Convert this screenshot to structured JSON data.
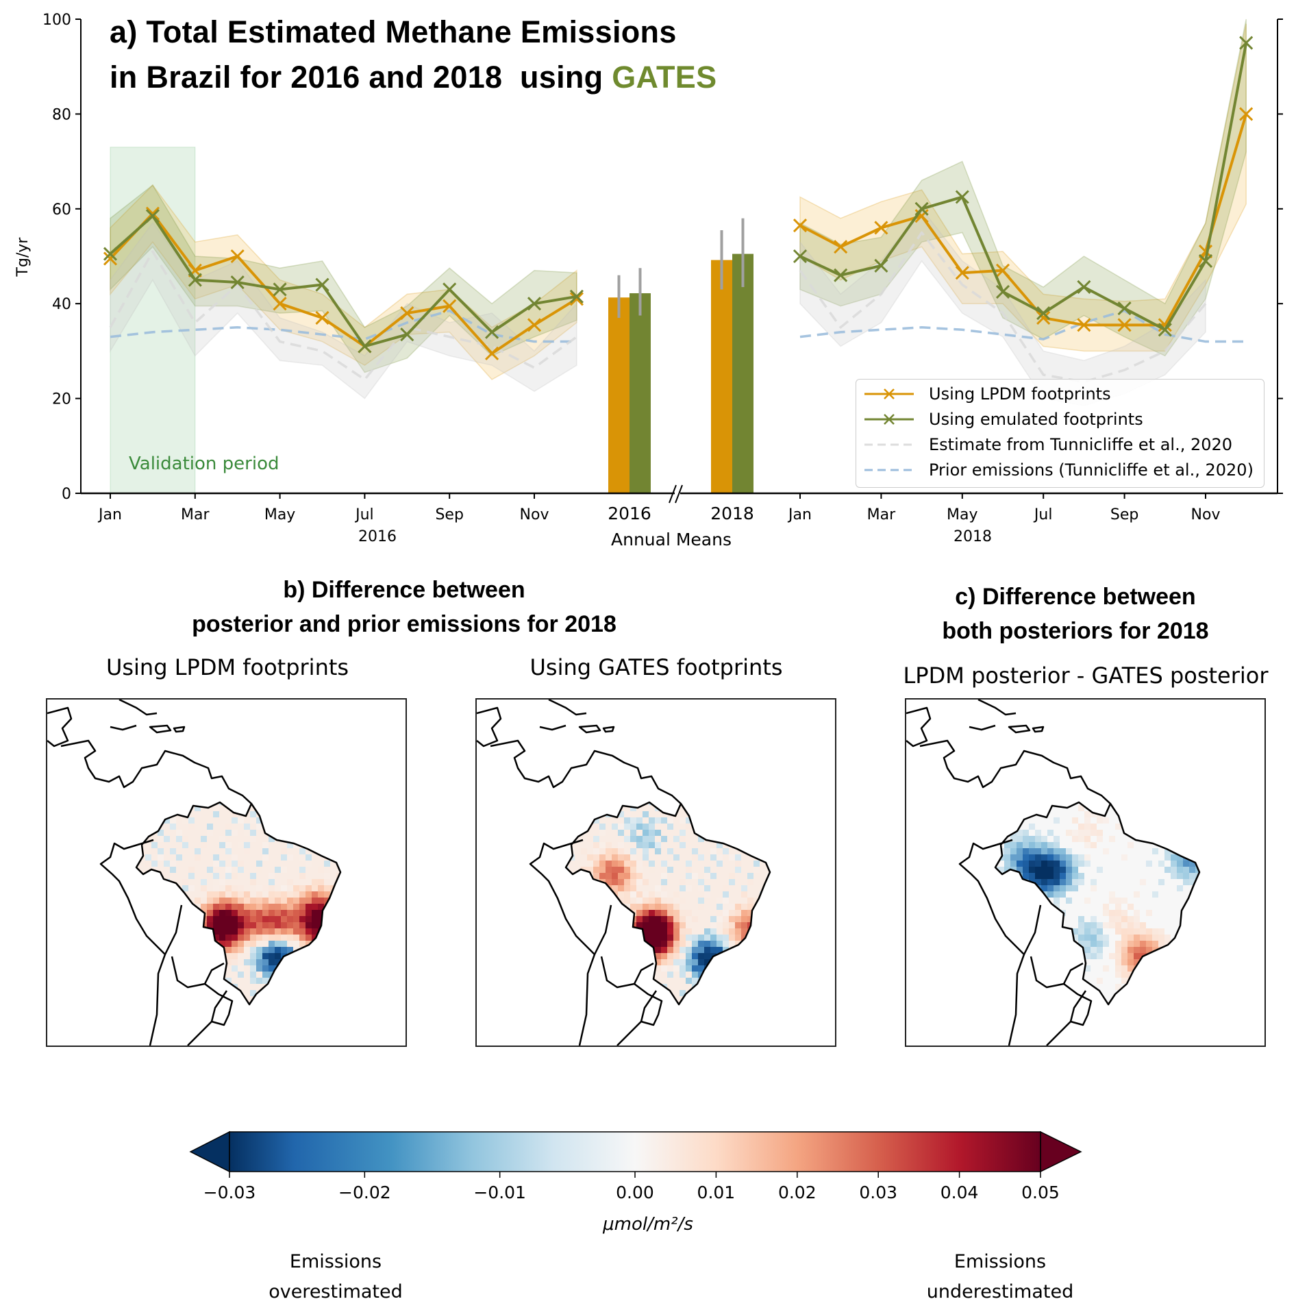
{
  "panel_a": {
    "title_line1": "a) Total Estimated Methane Emissions",
    "title_line2_prefix": "in Brazil for 2016 and 2018  using ",
    "title_line2_highlight": "GATES",
    "validation_label": "Validation period",
    "legend": [
      {
        "label": "Using LPDM footprints",
        "color": "#d99406",
        "style": "solid-x"
      },
      {
        "label": "Using emulated footprints",
        "color": "#728532",
        "style": "solid-x"
      },
      {
        "label": "Estimate from Tunnicliffe et al., 2020",
        "color": "#d9d9d9",
        "style": "dashed"
      },
      {
        "label": "Prior emissions (Tunnicliffe et al., 2020)",
        "color": "#9bbcdc",
        "style": "dashed"
      }
    ]
  },
  "panel_b": {
    "title_line1": "b) Difference between",
    "title_line2": "posterior and prior emissions  for 2018",
    "map1_subtitle": "Using LPDM footprints",
    "map2_subtitle": "Using GATES footprints"
  },
  "panel_c": {
    "title_line1": "c) Difference between",
    "title_line2": "both posteriors for 2018",
    "map_subtitle": "LPDM posterior - GATES posterior"
  },
  "colorbar": {
    "ticks": [
      "−0.03",
      "−0.02",
      "−0.01",
      "0.00",
      "0.01",
      "0.02",
      "0.03",
      "0.04",
      "0.05"
    ],
    "tick_values": [
      -0.03,
      -0.02,
      -0.01,
      0.0,
      0.01,
      0.02,
      0.03,
      0.04,
      0.05
    ],
    "vmin": -0.03,
    "vcenter": 0.0,
    "vmax": 0.05,
    "unit": "μmol/m²/s",
    "left_label_1": "Emissions",
    "left_label_2": "overestimated",
    "right_label_1": "Emissions",
    "right_label_2": "underestimated",
    "cmap": "RdBu_r"
  },
  "chart_data": {
    "type": "line",
    "title": "a) Total Estimated Methane Emissions in Brazil for 2016 and 2018 using GATES",
    "ylabel": "Tg/yr",
    "ylim": [
      0,
      100
    ],
    "yticks": [
      0,
      20,
      40,
      60,
      80,
      100
    ],
    "grid": false,
    "legend_position": "bottom-right",
    "x_2016": [
      "Jan",
      "Feb",
      "Mar",
      "Apr",
      "May",
      "Jun",
      "Jul",
      "Aug",
      "Sep",
      "Oct",
      "Nov",
      "Dec"
    ],
    "x_2018": [
      "Jan",
      "Feb",
      "Mar",
      "Apr",
      "May",
      "Jun",
      "Jul",
      "Aug",
      "Sep",
      "Oct",
      "Nov",
      "Dec"
    ],
    "xtick_labels_2016": [
      "Jan",
      "Mar",
      "May",
      "Jul",
      "Sep",
      "Nov"
    ],
    "xtick_labels_2018": [
      "Jan",
      "Mar",
      "May",
      "Jul",
      "Sep",
      "Nov"
    ],
    "xlabel_2016": "2016",
    "xlabel_2018": "2018",
    "annual_means_label": "Annual Means",
    "annual_categories": [
      "2016",
      "2018"
    ],
    "axis_break": "//",
    "validation_period": {
      "from": "Jan 2016",
      "to": "Mar 2016",
      "upper": 73
    },
    "series": [
      {
        "name": "Using LPDM footprints",
        "color": "#d99406",
        "marker": "x",
        "values_2016": [
          49.5,
          59,
          47,
          50,
          40,
          37,
          31,
          38,
          39.5,
          29.5,
          35.5,
          41
        ],
        "lower_2016": [
          42,
          53,
          41,
          44,
          34.5,
          32,
          27,
          33.5,
          34,
          24,
          29,
          36
        ],
        "upper_2016": [
          56,
          65,
          53,
          54.5,
          45,
          42,
          35,
          42,
          43,
          35,
          40,
          47
        ],
        "values_2018": [
          56.5,
          52,
          56,
          58.5,
          46.5,
          47,
          37,
          35.5,
          35.5,
          35.5,
          51,
          80
        ],
        "lower_2018": [
          50,
          45,
          49,
          52,
          40,
          40,
          31,
          30,
          30,
          30,
          44,
          61
        ],
        "upper_2018": [
          62.5,
          58,
          61.5,
          64,
          50.5,
          51,
          42,
          41,
          40.5,
          41,
          57,
          99
        ],
        "annual_mean": [
          41.3,
          49.2
        ],
        "annual_err_low": [
          37,
          43
        ],
        "annual_err_high": [
          46,
          55.5
        ]
      },
      {
        "name": "Using emulated footprints",
        "color": "#728532",
        "marker": "x",
        "values_2016": [
          50.5,
          58.5,
          45,
          44.5,
          43,
          44,
          31,
          33.5,
          43,
          34,
          40,
          41.5
        ],
        "lower_2016": [
          43,
          52,
          39.5,
          39.5,
          38,
          38.5,
          25.5,
          28.5,
          37.5,
          29,
          33,
          36.5
        ],
        "upper_2016": [
          58,
          65,
          50,
          49.5,
          47.5,
          49,
          35,
          39.5,
          47.5,
          40,
          47,
          46.5
        ],
        "values_2018": [
          50,
          46,
          48,
          60,
          62.5,
          42.5,
          38,
          43.5,
          39,
          34.5,
          49,
          95
        ],
        "lower_2018": [
          43,
          39.5,
          42,
          53,
          55,
          37,
          32.5,
          37.5,
          33,
          29,
          41,
          72
        ],
        "upper_2018": [
          57,
          52.5,
          54,
          66,
          70,
          48,
          43.5,
          50,
          45,
          40,
          57,
          100
        ]
      },
      {
        "name": "Estimate from Tunnicliffe et al., 2020",
        "color": "#d9d9d9",
        "dashed": true,
        "values_2016": [
          35,
          51,
          36,
          44,
          32,
          30,
          24,
          35,
          33,
          31,
          26.5,
          33
        ],
        "lower_2016": [
          30,
          45,
          29,
          38,
          28,
          27,
          20,
          32,
          29,
          27,
          21.5,
          27
        ],
        "upper_2016": [
          45,
          57,
          45,
          49,
          37,
          34,
          29,
          40,
          36,
          38,
          30,
          40
        ],
        "values_2018": [
          47,
          35,
          42,
          55,
          44,
          38,
          25,
          23.5,
          26,
          30,
          40,
          null
        ],
        "lower_2018": [
          40,
          31,
          36,
          49,
          38,
          33,
          20,
          18.5,
          21,
          25,
          34,
          null
        ],
        "upper_2018": [
          53,
          42,
          49,
          60,
          49,
          43,
          30,
          28,
          31,
          36,
          45,
          null
        ]
      },
      {
        "name": "Prior emissions (Tunnicliffe et al., 2020)",
        "color": "#9bbcdc",
        "dashed": true,
        "values_2016": [
          33,
          34,
          34.5,
          35,
          34.5,
          33.5,
          32.5,
          36,
          38.5,
          33.5,
          32,
          32
        ],
        "values_2018": [
          33,
          34,
          34.5,
          35,
          34.5,
          33.5,
          32.5,
          36,
          38.5,
          33.5,
          32,
          32
        ]
      }
    ],
    "annual_bars": {
      "categories": [
        "2016",
        "2018"
      ],
      "series": [
        {
          "name": "Using LPDM footprints",
          "values": [
            41.3,
            49.2
          ],
          "err_low": [
            37,
            43
          ],
          "err_high": [
            46,
            55.5
          ],
          "color": "#d99406"
        },
        {
          "name": "Using emulated footprints",
          "values": [
            42.2,
            50.5
          ],
          "err_low": [
            37.5,
            43.5
          ],
          "err_high": [
            47.5,
            58
          ],
          "color": "#728532"
        }
      ]
    }
  }
}
